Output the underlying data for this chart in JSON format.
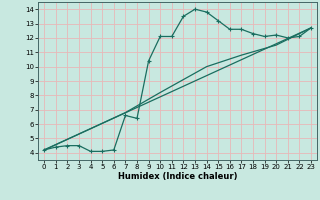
{
  "title": "",
  "xlabel": "Humidex (Indice chaleur)",
  "bg_color": "#c8e8e0",
  "grid_color": "#e8b8b8",
  "line_color": "#1a6e60",
  "xlim": [
    -0.5,
    23.5
  ],
  "ylim": [
    3.5,
    14.5
  ],
  "xticks": [
    0,
    1,
    2,
    3,
    4,
    5,
    6,
    7,
    8,
    9,
    10,
    11,
    12,
    13,
    14,
    15,
    16,
    17,
    18,
    19,
    20,
    21,
    22,
    23
  ],
  "yticks": [
    4,
    5,
    6,
    7,
    8,
    9,
    10,
    11,
    12,
    13,
    14
  ],
  "curve1_x": [
    0,
    1,
    2,
    3,
    4,
    5,
    6,
    7,
    8,
    9,
    10,
    11,
    12,
    13,
    14,
    15,
    16,
    17,
    18,
    19,
    20,
    21,
    22,
    23
  ],
  "curve1_y": [
    4.2,
    4.4,
    4.5,
    4.5,
    4.1,
    4.1,
    4.2,
    6.6,
    6.4,
    10.4,
    12.1,
    12.1,
    13.5,
    14.0,
    13.8,
    13.2,
    12.6,
    12.6,
    12.3,
    12.1,
    12.2,
    12.0,
    12.1,
    12.7
  ],
  "curve2_x": [
    0,
    23
  ],
  "curve2_y": [
    4.2,
    12.7
  ],
  "curve3_x": [
    0,
    7,
    10,
    14,
    17,
    20,
    23
  ],
  "curve3_y": [
    4.2,
    6.8,
    8.2,
    10.0,
    10.8,
    11.5,
    12.7
  ]
}
